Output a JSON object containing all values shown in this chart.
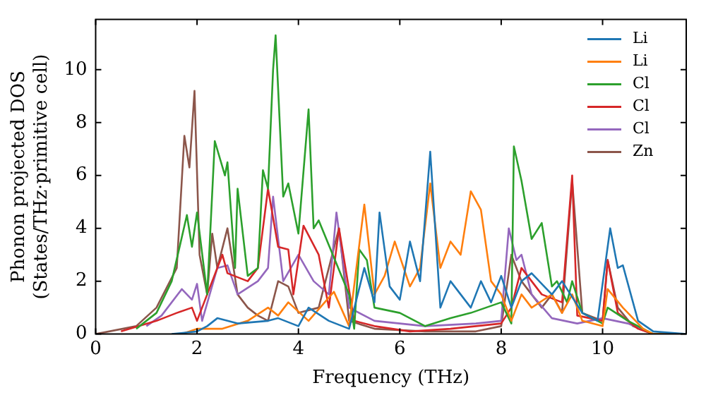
{
  "chart_data": {
    "type": "line",
    "xlabel": "Frequency (THz)",
    "ylabel": "Phonon projected DOS\n(States/THz·primitive cell)",
    "xlim": [
      0,
      11.65
    ],
    "ylim": [
      0,
      11.9
    ],
    "xticks": [
      0,
      2,
      4,
      6,
      8,
      10
    ],
    "yticks": [
      0,
      2,
      4,
      6,
      8,
      10
    ],
    "grid": false,
    "legend": "top right",
    "marker": "none",
    "line_style": "solid",
    "series": [
      {
        "name": "Li",
        "color": "#1f77b4",
        "x": [
          1.5,
          2,
          2.2,
          2.4,
          2.8,
          3.4,
          3.6,
          4,
          4.2,
          4.6,
          5,
          5.3,
          5.5,
          5.6,
          5.8,
          6,
          6.2,
          6.4,
          6.6,
          6.8,
          7,
          7.4,
          7.6,
          7.8,
          8,
          8.2,
          8.4,
          8.6,
          9,
          9.2,
          9.6,
          9.9,
          10.15,
          10.3,
          10.4,
          10.7,
          11,
          11.65
        ],
        "values": [
          0,
          0.1,
          0.3,
          0.6,
          0.4,
          0.5,
          0.6,
          0.3,
          1,
          0.5,
          0.2,
          2.5,
          1.2,
          4.6,
          1.8,
          1.3,
          3.5,
          2,
          6.9,
          1,
          2,
          1,
          2,
          1.2,
          2.2,
          1,
          2,
          2.3,
          1.5,
          2,
          0.8,
          0.5,
          4,
          2.5,
          2.6,
          0.5,
          0.1,
          0
        ]
      },
      {
        "name": "Li",
        "color": "#ff7f0e",
        "x": [
          1.7,
          2,
          2.5,
          3,
          3.4,
          3.6,
          3.8,
          4.2,
          4.7,
          5,
          5.3,
          5.5,
          5.7,
          5.9,
          6.2,
          6.4,
          6.6,
          6.8,
          7,
          7.2,
          7.4,
          7.6,
          7.8,
          8,
          8.2,
          8.4,
          8.6,
          9,
          9.2,
          9.4,
          9.6,
          10,
          10.1,
          10.4,
          10.8,
          11,
          11.65
        ],
        "values": [
          0,
          0.2,
          0.2,
          0.5,
          1,
          0.7,
          1.2,
          0.5,
          1.6,
          0.3,
          4.9,
          1.5,
          2.2,
          3.5,
          1.8,
          2.5,
          5.7,
          2.5,
          3.5,
          3,
          5.4,
          4.7,
          2,
          1.5,
          0.5,
          1.5,
          1,
          1.5,
          0.8,
          1.5,
          0.5,
          0.3,
          1.7,
          1,
          0.2,
          0,
          0
        ]
      },
      {
        "name": "Cl",
        "color": "#2ca02c",
        "x": [
          0.8,
          1.2,
          1.5,
          1.8,
          1.9,
          2,
          2.2,
          2.35,
          2.55,
          2.6,
          2.75,
          2.8,
          3,
          3.2,
          3.3,
          3.4,
          3.5,
          3.55,
          3.7,
          3.8,
          4,
          4.2,
          4.3,
          4.4,
          5,
          5.1,
          5.2,
          5.35,
          5.5,
          6,
          6.5,
          7,
          7.4,
          8,
          8.2,
          8.25,
          8.4,
          8.6,
          8.8,
          9,
          9.1,
          9.3,
          9.4,
          9.6,
          10,
          10.1,
          10.5,
          11,
          11.65
        ],
        "values": [
          0.2,
          0.8,
          2,
          4.5,
          3.3,
          4.6,
          1.5,
          7.3,
          6,
          6.5,
          2.5,
          5.5,
          2.2,
          2.5,
          6.2,
          5.5,
          10,
          11.3,
          5.2,
          5.7,
          3.8,
          8.5,
          4,
          4.3,
          1.5,
          0.2,
          3.2,
          2.8,
          1,
          0.8,
          0.3,
          0.6,
          0.8,
          1.2,
          0.4,
          7.1,
          5.8,
          3.6,
          4.2,
          1.8,
          2,
          1.2,
          2,
          0.8,
          0.4,
          1,
          0.5,
          0,
          0
        ]
      },
      {
        "name": "Cl",
        "color": "#d62728",
        "x": [
          0.5,
          1.2,
          1.6,
          1.9,
          2,
          2.2,
          2.5,
          2.6,
          3,
          3.2,
          3.4,
          3.6,
          3.8,
          3.9,
          4.1,
          4.4,
          4.6,
          4.8,
          5.1,
          5.5,
          6.2,
          7,
          8,
          8.2,
          8.4,
          8.8,
          9.2,
          9.4,
          9.5,
          10,
          10.1,
          10.3,
          10.7,
          11,
          11.65
        ],
        "values": [
          0.1,
          0.5,
          0.8,
          1,
          0.5,
          1.5,
          3,
          2.3,
          2,
          2.5,
          5.5,
          3.3,
          3.2,
          1.5,
          4.1,
          3,
          1,
          4,
          0.5,
          0.3,
          0.1,
          0.2,
          0.4,
          1,
          2.5,
          1.5,
          1.2,
          6,
          0.7,
          0.5,
          2.8,
          0.8,
          0.2,
          0,
          0
        ]
      },
      {
        "name": "Cl",
        "color": "#9467bd",
        "x": [
          1,
          1.3,
          1.7,
          1.9,
          2,
          2.1,
          2.4,
          2.6,
          2.8,
          3.2,
          3.4,
          3.5,
          3.7,
          4,
          4.3,
          4.6,
          4.75,
          5,
          5.5,
          6.5,
          7.5,
          8,
          8.15,
          8.3,
          8.4,
          8.6,
          9,
          9.5,
          10,
          10.5,
          11,
          11.65
        ],
        "values": [
          0.3,
          0.7,
          1.7,
          1.3,
          1.9,
          0.5,
          2.5,
          2.6,
          1.5,
          2,
          2.5,
          5.2,
          2,
          3,
          2,
          1.5,
          4.6,
          1,
          0.5,
          0.3,
          0.4,
          0.5,
          4,
          2.8,
          3,
          1.5,
          0.6,
          0.4,
          0.6,
          0.4,
          0,
          0
        ]
      },
      {
        "name": "Zn",
        "color": "#8c564b",
        "x": [
          0,
          0.8,
          1.2,
          1.6,
          1.75,
          1.85,
          1.95,
          2.05,
          2.2,
          2.3,
          2.4,
          2.6,
          2.8,
          3,
          3.2,
          3.4,
          3.6,
          3.8,
          4,
          4.4,
          4.8,
          5,
          5.5,
          6.5,
          7.5,
          8,
          8.2,
          8.4,
          8.8,
          9,
          9.2,
          9.4,
          9.6,
          10,
          10.1,
          10.3,
          10.6,
          11,
          11.65
        ],
        "values": [
          0,
          0.3,
          1,
          2.5,
          7.5,
          6.3,
          9.2,
          3,
          1.5,
          3.8,
          2.5,
          4,
          1.5,
          1,
          0.7,
          0.5,
          2,
          1.8,
          0.8,
          1,
          4,
          0.5,
          0.2,
          0.1,
          0.1,
          0.3,
          3,
          2,
          1,
          1.5,
          0.8,
          5.8,
          0.8,
          0.5,
          2.8,
          1,
          0.3,
          0,
          0
        ]
      }
    ]
  }
}
